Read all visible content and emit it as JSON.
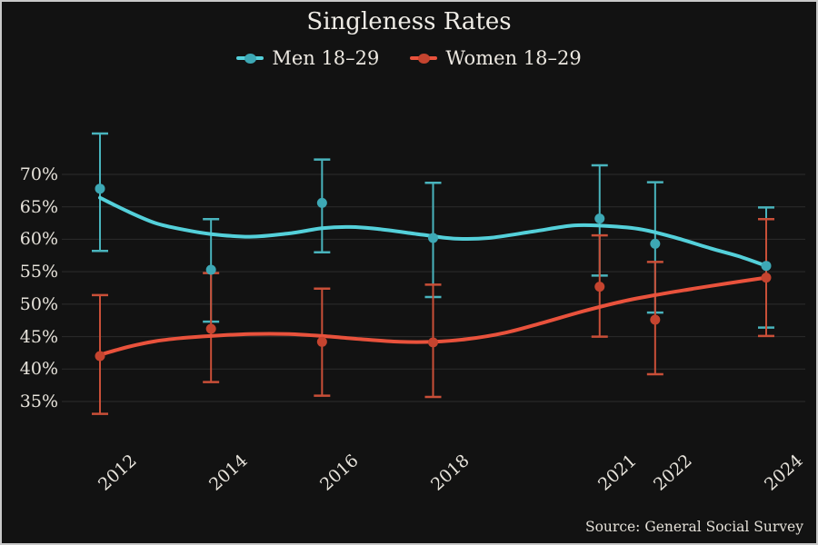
{
  "chart_data": {
    "type": "line",
    "title": "Singleness Rates",
    "source": "Source: General Social Survey",
    "xlabel": "",
    "ylabel": "",
    "x": [
      2012,
      2014,
      2016,
      2018,
      2021,
      2022,
      2024
    ],
    "xticklabels": [
      "2012",
      "2014",
      "2016",
      "2018",
      "2021",
      "2022",
      "2024"
    ],
    "yticks": [
      70,
      65,
      60,
      55,
      50,
      45,
      40,
      35
    ],
    "yticklabels": [
      "70%",
      "65%",
      "60%",
      "55%",
      "50%",
      "45%",
      "40%",
      "35%"
    ],
    "xlim": [
      2011.3,
      2024.7
    ],
    "ylim": [
      32,
      77
    ],
    "grid": "horizontal",
    "legend_position": "top-center",
    "background_color": "#121212",
    "grid_color": "#2c2c2c",
    "text_color": "#ece8e1",
    "series": [
      {
        "name": "Men 18–29",
        "line_color": "#54d0da",
        "marker_color": "#3da8b5",
        "bar_color": "#49b4bd",
        "values": [
          67.8,
          55.3,
          65.6,
          60.2,
          63.2,
          59.3,
          55.9
        ],
        "ci_low": [
          58.2,
          47.3,
          58.0,
          51.1,
          54.4,
          48.7,
          46.4
        ],
        "ci_high": [
          76.3,
          63.1,
          72.3,
          68.7,
          71.4,
          68.8,
          64.9
        ],
        "trend": [
          [
            2012,
            66.4
          ],
          [
            2012.5,
            64.3
          ],
          [
            2013,
            62.5
          ],
          [
            2013.5,
            61.5
          ],
          [
            2014,
            60.8
          ],
          [
            2014.7,
            60.4
          ],
          [
            2015.4,
            60.9
          ],
          [
            2016,
            61.7
          ],
          [
            2016.5,
            61.9
          ],
          [
            2017,
            61.6
          ],
          [
            2017.8,
            60.7
          ],
          [
            2018.4,
            60.1
          ],
          [
            2019,
            60.2
          ],
          [
            2019.8,
            61.2
          ],
          [
            2020.5,
            62.1
          ],
          [
            2021,
            62.1
          ],
          [
            2021.7,
            61.6
          ],
          [
            2022.3,
            60.4
          ],
          [
            2023,
            58.6
          ],
          [
            2023.5,
            57.4
          ],
          [
            2024,
            55.9
          ]
        ]
      },
      {
        "name": "Women 18–29",
        "line_color": "#e9523c",
        "marker_color": "#c5442f",
        "bar_color": "#c94f38",
        "values": [
          42.0,
          46.2,
          44.2,
          44.1,
          52.7,
          47.6,
          54.1
        ],
        "ci_low": [
          33.1,
          38.0,
          35.9,
          35.7,
          45.0,
          39.2,
          45.1
        ],
        "ci_high": [
          51.4,
          54.8,
          52.4,
          53.0,
          60.6,
          56.5,
          63.1
        ],
        "trend": [
          [
            2012,
            42.2
          ],
          [
            2012.5,
            43.4
          ],
          [
            2013,
            44.3
          ],
          [
            2013.5,
            44.8
          ],
          [
            2014,
            45.1
          ],
          [
            2014.7,
            45.4
          ],
          [
            2015.4,
            45.4
          ],
          [
            2016,
            45.1
          ],
          [
            2016.7,
            44.6
          ],
          [
            2017.4,
            44.2
          ],
          [
            2018,
            44.2
          ],
          [
            2018.6,
            44.6
          ],
          [
            2019.3,
            45.6
          ],
          [
            2020,
            47.2
          ],
          [
            2020.7,
            48.9
          ],
          [
            2021.4,
            50.4
          ],
          [
            2022,
            51.4
          ],
          [
            2022.7,
            52.4
          ],
          [
            2023.3,
            53.2
          ],
          [
            2024,
            54.1
          ]
        ]
      }
    ]
  }
}
